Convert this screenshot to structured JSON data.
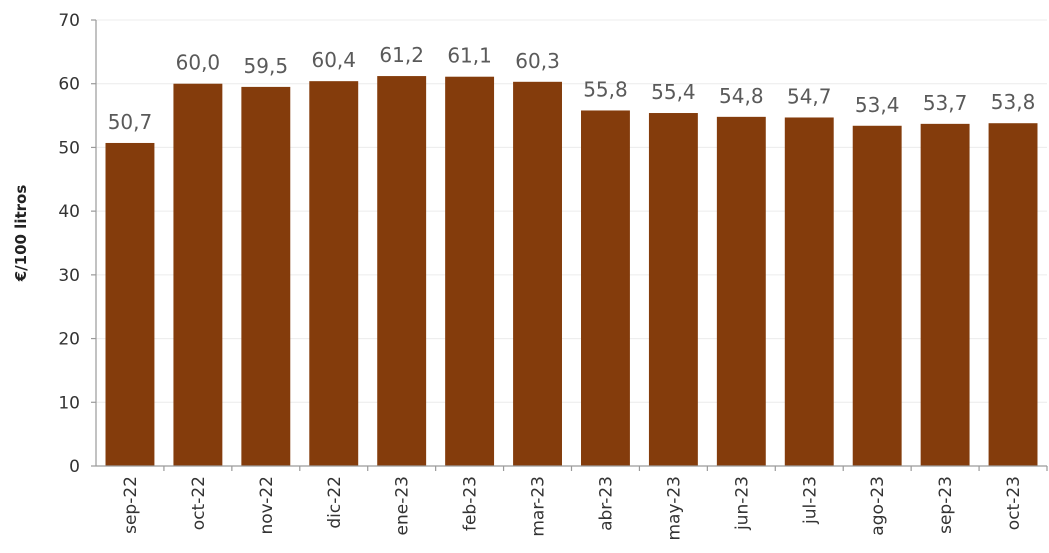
{
  "chart_data": {
    "type": "bar",
    "categories": [
      "sep-22",
      "oct-22",
      "nov-22",
      "dic-22",
      "ene-23",
      "feb-23",
      "mar-23",
      "abr-23",
      "may-23",
      "jun-23",
      "jul-23",
      "ago-23",
      "sep-23",
      "oct-23"
    ],
    "values": [
      50.7,
      60.0,
      59.5,
      60.4,
      61.2,
      61.1,
      60.3,
      55.8,
      55.4,
      54.8,
      54.7,
      53.4,
      53.7,
      53.8
    ],
    "value_labels": [
      "50,7",
      "60,0",
      "59,5",
      "60,4",
      "61,2",
      "61,1",
      "60,3",
      "55,8",
      "55,4",
      "54,8",
      "54,7",
      "53,4",
      "53,7",
      "53,8"
    ],
    "title": "",
    "xlabel": "",
    "ylabel": "€/100 litros",
    "ylim": [
      0,
      70
    ],
    "yticks": [
      0,
      10,
      20,
      30,
      40,
      50,
      60,
      70
    ],
    "grid": true,
    "legend": "none",
    "bar_color": "#843C0C"
  }
}
